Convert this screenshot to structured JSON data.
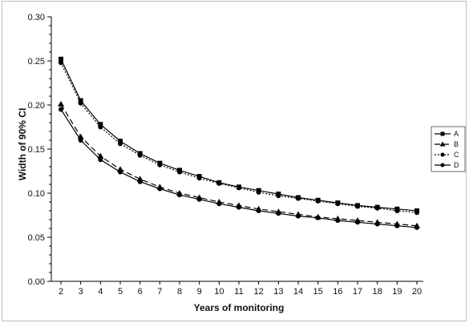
{
  "chart_data": {
    "type": "line",
    "title": "",
    "xlabel": "Years of monitoring",
    "ylabel": "Width of 90% CI",
    "x": [
      2,
      3,
      4,
      5,
      6,
      7,
      8,
      9,
      10,
      11,
      12,
      13,
      14,
      15,
      16,
      17,
      18,
      19,
      20
    ],
    "xlim": [
      2,
      20
    ],
    "ylim": [
      0.0,
      0.3
    ],
    "yticks": [
      "0.00",
      "0.05",
      "0.10",
      "0.15",
      "0.20",
      "0.25",
      "0.30"
    ],
    "grid": false,
    "legend_position": "right",
    "series": [
      {
        "name": "A",
        "marker": "square",
        "line": "solid",
        "color": "#000000",
        "values": [
          0.252,
          0.205,
          0.178,
          0.159,
          0.145,
          0.134,
          0.126,
          0.119,
          0.112,
          0.107,
          0.103,
          0.099,
          0.095,
          0.092,
          0.089,
          0.086,
          0.084,
          0.082,
          0.08
        ]
      },
      {
        "name": "B",
        "marker": "triangle",
        "line": "dashed",
        "color": "#000000",
        "values": [
          0.201,
          0.164,
          0.142,
          0.127,
          0.116,
          0.107,
          0.1,
          0.095,
          0.09,
          0.086,
          0.082,
          0.079,
          0.076,
          0.073,
          0.071,
          0.069,
          0.067,
          0.065,
          0.063
        ]
      },
      {
        "name": "C",
        "marker": "circle",
        "line": "dotted",
        "color": "#000000",
        "values": [
          0.248,
          0.202,
          0.175,
          0.156,
          0.143,
          0.132,
          0.124,
          0.117,
          0.111,
          0.106,
          0.101,
          0.097,
          0.094,
          0.091,
          0.088,
          0.085,
          0.083,
          0.08,
          0.078
        ]
      },
      {
        "name": "D",
        "marker": "circle",
        "line": "solid",
        "color": "#000000",
        "values": [
          0.195,
          0.16,
          0.138,
          0.124,
          0.113,
          0.105,
          0.098,
          0.093,
          0.088,
          0.084,
          0.08,
          0.077,
          0.074,
          0.072,
          0.069,
          0.067,
          0.065,
          0.063,
          0.061
        ]
      }
    ]
  }
}
